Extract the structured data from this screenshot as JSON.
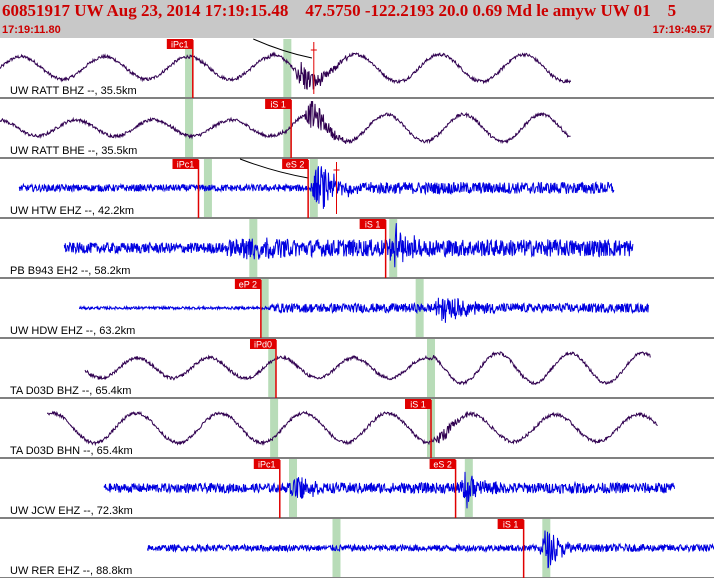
{
  "header": {
    "title": "60851917 UW Aug 23, 2014 17:19:15.48    47.5750 -122.2193 20.0 0.69 Md le amyw UW 01    5",
    "time_start": "17:19:11.80",
    "time_end": "17:19:49.57"
  },
  "colors": {
    "header_bg": "#c8c8c8",
    "header_text": "#cc0000",
    "pick_box": "#e00000",
    "pick_text": "#ffffff",
    "pick_line": "#e00000",
    "theory_band": "#b8dcb8",
    "trace_blue": "#0000e0",
    "trace_dark": "#300050"
  },
  "chart_data": {
    "type": "line",
    "x_range_seconds": [
      0,
      37.77
    ],
    "traces": [
      {
        "label": "UW RATT BHZ --, 35.5km",
        "color": "dark",
        "kind": "wave",
        "data_start_s": 0.0,
        "data_end_s": 30.2,
        "pre_amp": 0.42,
        "post_amp": 0.5,
        "onset_s": 14.3,
        "burst": {
          "center_s": 16.0,
          "width_s": 2.2,
          "amp": 0.65
        },
        "picks": [
          {
            "label": "iPc1",
            "t_s": 10.2,
            "style": "box"
          }
        ],
        "theory_bands": [
          {
            "t_s": 10.0
          },
          {
            "t_s": 15.2
          }
        ],
        "extra_marks": [
          {
            "t_s": 16.6
          }
        ],
        "curve": {
          "from_s": 13.4,
          "to_s": 16.5
        }
      },
      {
        "label": "UW RATT BHE --, 35.5km",
        "color": "dark",
        "kind": "wave",
        "data_start_s": 0.0,
        "data_end_s": 30.2,
        "pre_amp": 0.3,
        "post_amp": 0.5,
        "onset_s": 15.0,
        "burst": {
          "center_s": 16.5,
          "width_s": 2.0,
          "amp": 0.6
        },
        "picks": [
          {
            "label": "iS 1",
            "t_s": 15.4,
            "style": "box"
          }
        ],
        "theory_bands": [
          {
            "t_s": 10.0
          },
          {
            "t_s": 15.2
          }
        ],
        "extra_marks": []
      },
      {
        "label": "UW HTW EHZ --, 42.2km",
        "color": "blue",
        "kind": "noise",
        "data_start_s": 1.0,
        "data_end_s": 32.5,
        "pre_amp": 0.13,
        "post_amp": 0.22,
        "onset_s": 16.4,
        "burst": {
          "center_s": 16.9,
          "width_s": 2.0,
          "amp": 0.85
        },
        "picks": [
          {
            "label": "iPc1",
            "t_s": 10.5,
            "style": "box"
          },
          {
            "label": "eS 2",
            "t_s": 16.3,
            "style": "box"
          }
        ],
        "theory_bands": [
          {
            "t_s": 11.0
          },
          {
            "t_s": 16.6
          }
        ],
        "extra_marks": [
          {
            "t_s": 17.8
          }
        ],
        "curve": {
          "from_s": 12.7,
          "to_s": 16.3
        }
      },
      {
        "label": "PB B943 EH2 --, 58.2km",
        "color": "blue",
        "kind": "noise",
        "data_start_s": 3.4,
        "data_end_s": 33.5,
        "pre_amp": 0.2,
        "post_amp": 0.32,
        "onset_s": 12.0,
        "burst": {
          "center_s": 13.1,
          "width_s": 1.8,
          "amp": 0.6
        },
        "second_burst": {
          "center_s": 20.9,
          "width_s": 1.6,
          "amp": 0.75
        },
        "picks": [
          {
            "label": "iS 1",
            "t_s": 20.4,
            "style": "box"
          }
        ],
        "theory_bands": [
          {
            "t_s": 13.4
          },
          {
            "t_s": 20.8
          }
        ],
        "extra_marks": []
      },
      {
        "label": "UW HDW EHZ --, 63.2km",
        "color": "blue",
        "kind": "noise",
        "data_start_s": 4.2,
        "data_end_s": 34.3,
        "pre_amp": 0.05,
        "post_amp": 0.17,
        "onset_s": 14.2,
        "burst": {
          "center_s": 23.5,
          "width_s": 2.6,
          "amp": 0.55
        },
        "picks": [
          {
            "label": "eP 2",
            "t_s": 13.8,
            "style": "box"
          }
        ],
        "theory_bands": [
          {
            "t_s": 14.0
          },
          {
            "t_s": 22.2
          }
        ],
        "extra_marks": []
      },
      {
        "label": "TA D03D BHZ --, 65.4km",
        "color": "dark",
        "kind": "wave",
        "data_start_s": 4.5,
        "data_end_s": 34.4,
        "pre_amp": 0.38,
        "post_amp": 0.55,
        "onset_s": 22.9,
        "burst": null,
        "picks": [
          {
            "label": "iPd0",
            "t_s": 14.6,
            "style": "box"
          }
        ],
        "theory_bands": [
          {
            "t_s": 14.4
          },
          {
            "t_s": 22.8
          }
        ],
        "extra_marks": []
      },
      {
        "label": "TA D03D BHN --, 65.4km",
        "color": "dark",
        "kind": "wave",
        "data_start_s": 2.5,
        "data_end_s": 34.8,
        "pre_amp": 0.55,
        "post_amp": 0.5,
        "onset_s": 22.8,
        "burst": {
          "center_s": 23.3,
          "width_s": 1.8,
          "amp": 0.3
        },
        "picks": [
          {
            "label": "iS 1",
            "t_s": 22.8,
            "style": "box"
          }
        ],
        "theory_bands": [
          {
            "t_s": 14.5
          },
          {
            "t_s": 22.8
          }
        ],
        "extra_marks": []
      },
      {
        "label": "UW JCW EHZ --, 72.3km",
        "color": "blue",
        "kind": "noise",
        "data_start_s": 5.5,
        "data_end_s": 35.7,
        "pre_amp": 0.17,
        "post_amp": 0.2,
        "onset_s": 15.2,
        "burst": {
          "center_s": 15.7,
          "width_s": 1.5,
          "amp": 0.6
        },
        "second_burst": {
          "center_s": 24.7,
          "width_s": 1.5,
          "amp": 0.7
        },
        "picks": [
          {
            "label": "iPc1",
            "t_s": 14.8,
            "style": "box"
          },
          {
            "label": "eS 2",
            "t_s": 24.1,
            "style": "box"
          }
        ],
        "theory_bands": [
          {
            "t_s": 15.5
          },
          {
            "t_s": 24.8
          }
        ],
        "extra_marks": []
      },
      {
        "label": "UW RER EHZ --, 88.8km",
        "color": "blue",
        "kind": "noise",
        "data_start_s": 7.8,
        "data_end_s": 37.77,
        "pre_amp": 0.12,
        "post_amp": 0.14,
        "onset_s": 28.5,
        "burst": {
          "center_s": 28.9,
          "width_s": 1.5,
          "amp": 0.8
        },
        "picks": [
          {
            "label": "iS 1",
            "t_s": 27.7,
            "style": "box"
          }
        ],
        "theory_bands": [
          {
            "t_s": 17.8
          },
          {
            "t_s": 28.9
          }
        ],
        "extra_marks": []
      }
    ]
  }
}
